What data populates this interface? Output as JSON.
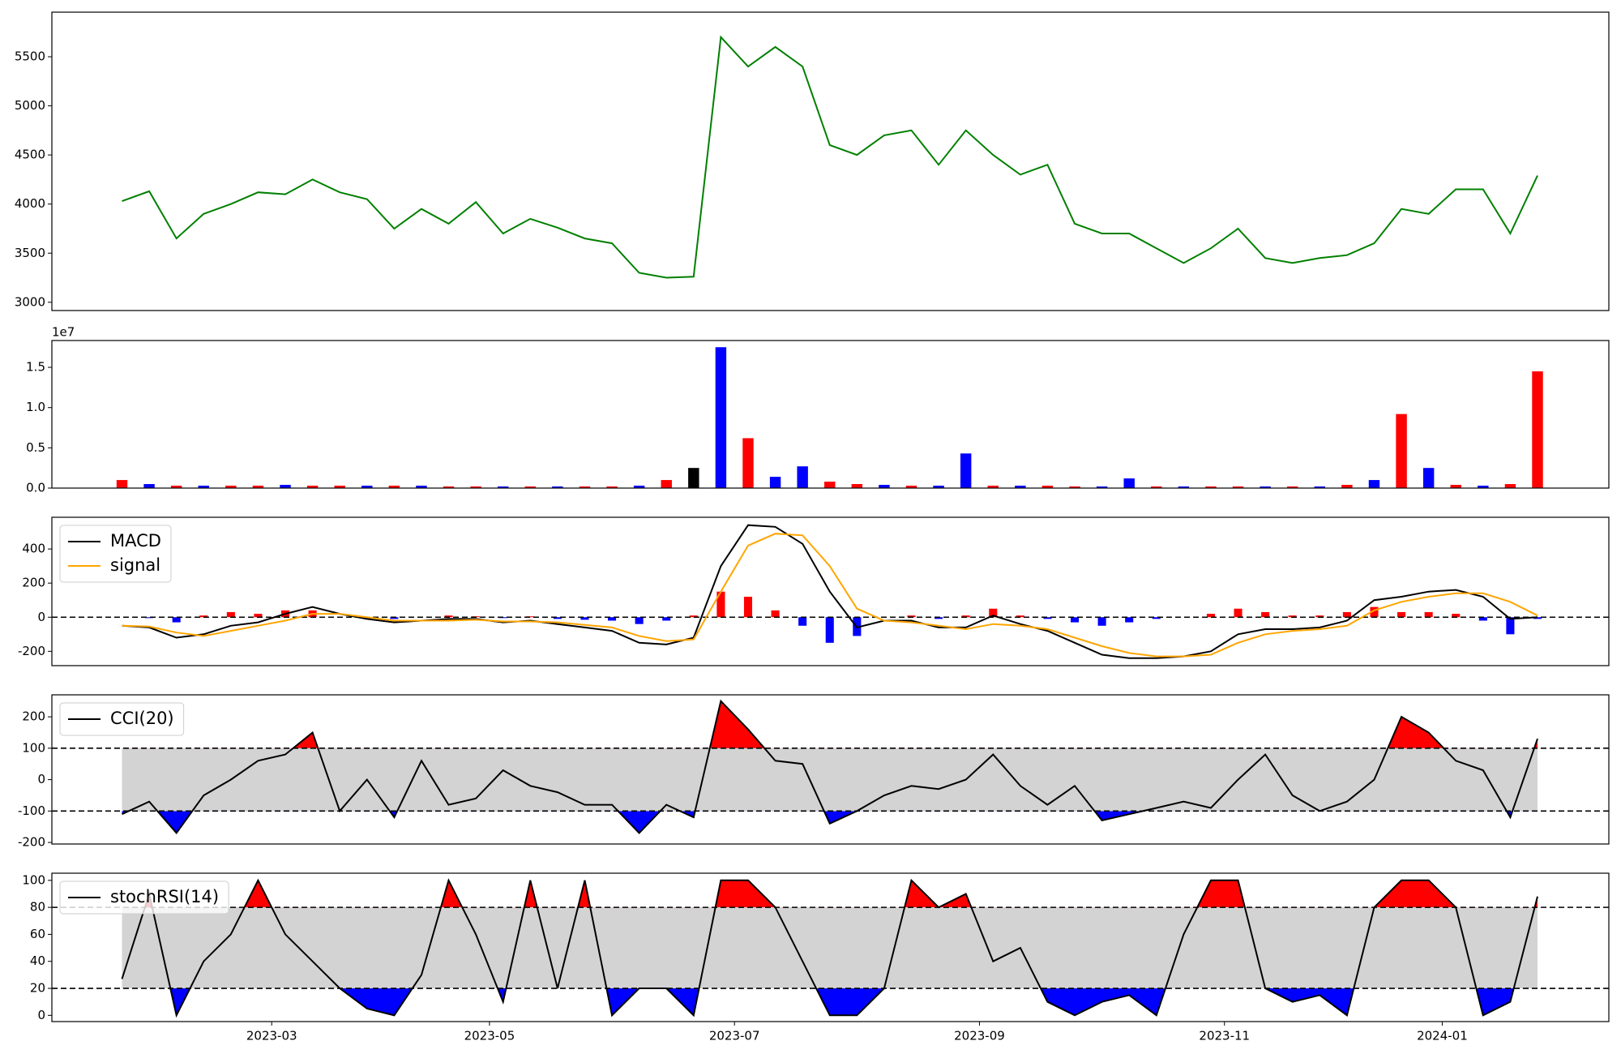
{
  "chart_data": [
    {
      "type": "line",
      "color": "green",
      "values": [
        4030,
        4130,
        3650,
        3900,
        4000,
        4120,
        4100,
        4250,
        4120,
        4050,
        3750,
        3950,
        3800,
        4020,
        3700,
        3850,
        3760,
        3650,
        3600,
        3300,
        3250,
        3260,
        5700,
        5400,
        5600,
        5400,
        4600,
        4500,
        4700,
        4750,
        4400,
        4750,
        4500,
        4300,
        4400,
        3800,
        3700,
        3700,
        3550,
        3400,
        3550,
        3750,
        3450,
        3400,
        3450,
        3480,
        3600,
        3950,
        3900,
        4150,
        4150,
        3700,
        4290
      ],
      "ylim": [
        2916,
        5954
      ],
      "yticks": [
        3000,
        3500,
        4000,
        4500,
        5000,
        5500
      ]
    },
    {
      "type": "bar",
      "offset_label": "1e7",
      "values": [
        0.1,
        0.05,
        0.03,
        0.03,
        0.03,
        0.03,
        0.04,
        0.03,
        0.03,
        0.03,
        0.03,
        0.03,
        0.02,
        0.02,
        0.02,
        0.02,
        0.02,
        0.02,
        0.02,
        0.03,
        0.1,
        0.25,
        1.75,
        0.62,
        0.14,
        0.27,
        0.08,
        0.05,
        0.04,
        0.03,
        0.03,
        0.43,
        0.03,
        0.03,
        0.03,
        0.02,
        0.02,
        0.12,
        0.02,
        0.02,
        0.02,
        0.02,
        0.02,
        0.02,
        0.02,
        0.04,
        0.1,
        0.92,
        0.25,
        0.04,
        0.03,
        0.05,
        1.45
      ],
      "colors": [
        "red",
        "blue",
        "red",
        "blue",
        "red",
        "red",
        "blue",
        "red",
        "red",
        "blue",
        "red",
        "blue",
        "red",
        "red",
        "blue",
        "red",
        "blue",
        "red",
        "red",
        "blue",
        "red",
        "black",
        "blue",
        "red",
        "blue",
        "blue",
        "red",
        "red",
        "blue",
        "red",
        "blue",
        "blue",
        "red",
        "blue",
        "red",
        "red",
        "blue",
        "blue",
        "red",
        "blue",
        "red",
        "red",
        "blue",
        "red",
        "blue",
        "red",
        "blue",
        "red",
        "blue",
        "red",
        "blue",
        "red",
        "red"
      ],
      "ylim": [
        0,
        1.833
      ],
      "yticks": [
        {
          "value": 0,
          "label": "0.0"
        },
        {
          "value": 0.5,
          "label": "0.5"
        },
        {
          "value": 1,
          "label": "1.0"
        },
        {
          "value": 1.5,
          "label": "1.5"
        }
      ]
    },
    {
      "type": "macd",
      "series": [
        {
          "name": "MACD",
          "color": "black",
          "values": [
            -50,
            -60,
            -120,
            -100,
            -50,
            -30,
            20,
            60,
            20,
            -10,
            -30,
            -20,
            -10,
            -10,
            -30,
            -20,
            -40,
            -60,
            -80,
            -150,
            -160,
            -120,
            300,
            540,
            530,
            430,
            150,
            -60,
            -20,
            -20,
            -60,
            -60,
            10,
            -40,
            -80,
            -150,
            -220,
            -240,
            -240,
            -230,
            -200,
            -100,
            -70,
            -70,
            -60,
            -20,
            100,
            120,
            150,
            160,
            120,
            -10,
            0
          ]
        },
        {
          "name": "signal",
          "color": "orange",
          "values": [
            -50,
            -55,
            -90,
            -110,
            -80,
            -50,
            -20,
            20,
            20,
            0,
            -20,
            -20,
            -20,
            -15,
            -25,
            -25,
            -30,
            -45,
            -60,
            -110,
            -140,
            -130,
            150,
            420,
            490,
            480,
            300,
            50,
            -20,
            -30,
            -50,
            -70,
            -40,
            -50,
            -70,
            -120,
            -170,
            -210,
            -230,
            -230,
            -220,
            -150,
            -100,
            -80,
            -70,
            -50,
            40,
            90,
            120,
            140,
            140,
            90,
            10
          ]
        }
      ],
      "histogram": {
        "values": [
          0,
          -5,
          -30,
          10,
          30,
          20,
          40,
          40,
          0,
          -10,
          -10,
          0,
          10,
          5,
          -5,
          5,
          -10,
          -15,
          -20,
          -40,
          -20,
          10,
          150,
          120,
          40,
          -50,
          -150,
          -110,
          0,
          10,
          -10,
          10,
          50,
          10,
          -10,
          -30,
          -50,
          -30,
          -10,
          0,
          20,
          50,
          30,
          10,
          10,
          30,
          60,
          30,
          30,
          20,
          -20,
          -100,
          -10
        ],
        "pos_color": "red",
        "neg_color": "blue"
      },
      "hline": 0,
      "ylim": [
        -284,
        586
      ],
      "yticks": [
        -200,
        0,
        200,
        400
      ],
      "legend": "upper left"
    },
    {
      "type": "oscillator",
      "series": [
        {
          "name": "CCI(20)",
          "color": "black",
          "values": [
            -110,
            -70,
            -170,
            -50,
            0,
            60,
            80,
            150,
            -100,
            0,
            -120,
            60,
            -80,
            -60,
            30,
            -20,
            -40,
            -80,
            -80,
            -170,
            -80,
            -120,
            250,
            160,
            60,
            50,
            -140,
            -100,
            -50,
            -20,
            -30,
            0,
            80,
            -20,
            -80,
            -20,
            -130,
            -110,
            -90,
            -70,
            -90,
            0,
            80,
            -50,
            -100,
            -70,
            0,
            200,
            150,
            60,
            30,
            -120,
            130
          ]
        }
      ],
      "thresholds": [
        100,
        -100
      ],
      "band_color": "lightgray",
      "upper_color": "red",
      "lower_color": "blue",
      "ylim": [
        -205,
        270
      ],
      "yticks": [
        -200,
        -100,
        0,
        100,
        200
      ],
      "legend": "upper left"
    },
    {
      "type": "oscillator",
      "series": [
        {
          "name": "stochRSI(14)",
          "color": "black",
          "values": [
            27,
            90,
            0,
            40,
            60,
            100,
            60,
            40,
            20,
            5,
            0,
            30,
            100,
            60,
            10,
            100,
            20,
            100,
            0,
            20,
            20,
            0,
            100,
            100,
            80,
            40,
            0,
            0,
            20,
            100,
            80,
            90,
            40,
            50,
            10,
            0,
            10,
            15,
            0,
            60,
            100,
            100,
            20,
            10,
            15,
            0,
            80,
            100,
            100,
            80,
            0,
            10,
            88
          ]
        }
      ],
      "thresholds": [
        80,
        20
      ],
      "band_color": "lightgray",
      "upper_color": "red",
      "lower_color": "blue",
      "ylim": [
        -4.6,
        105.3
      ],
      "yticks": [
        0,
        20,
        40,
        60,
        80,
        100
      ],
      "legend": "upper left",
      "x": [
        "2023-01",
        "2023-01",
        "2023-02",
        "2023-02",
        "2023-02",
        "2023-02",
        "2023-03",
        "2023-03",
        "2023-03",
        "2023-03",
        "2023-04",
        "2023-04",
        "2023-04",
        "2023-04",
        "2023-05",
        "2023-05",
        "2023-05",
        "2023-05",
        "2023-05",
        "2023-06",
        "2023-06",
        "2023-06",
        "2023-06",
        "2023-07",
        "2023-07",
        "2023-07",
        "2023-07",
        "2023-07",
        "2023-08",
        "2023-08",
        "2023-08",
        "2023-08",
        "2023-09",
        "2023-09",
        "2023-09",
        "2023-09",
        "2023-10",
        "2023-10",
        "2023-10",
        "2023-10",
        "2023-10",
        "2023-11",
        "2023-11",
        "2023-11",
        "2023-11",
        "2023-12",
        "2023-12",
        "2023-12",
        "2023-12",
        "2024-01",
        "2024-01",
        "2024-01",
        "2024-01"
      ],
      "xticks": [
        "2023-03",
        "2023-05",
        "2023-07",
        "2023-09",
        "2023-11",
        "2024-01"
      ]
    }
  ]
}
